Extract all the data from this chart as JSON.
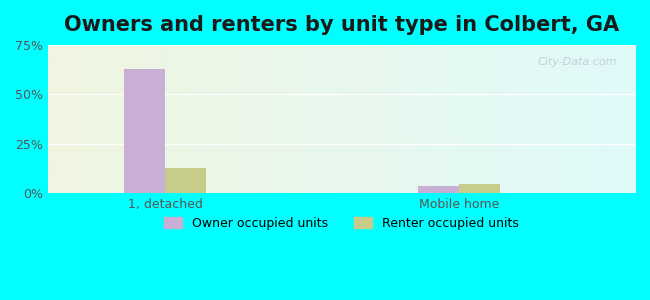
{
  "title": "Owners and renters by unit type in Colbert, GA",
  "categories": [
    "1, detached",
    "Mobile home"
  ],
  "owner_values": [
    63.0,
    3.5
  ],
  "renter_values": [
    13.0,
    4.5
  ],
  "owner_color": "#c9aed6",
  "renter_color": "#c8cc8a",
  "ylim": [
    0,
    75
  ],
  "yticks": [
    0,
    25,
    50,
    75
  ],
  "yticklabels": [
    "0%",
    "25%",
    "50%",
    "75%"
  ],
  "bar_width": 0.35,
  "group_positions": [
    1.0,
    3.5
  ],
  "bg_color_left": "#f0f5e0",
  "bg_color_right": "#e0fafa",
  "outer_bg": "#00ffff",
  "title_fontsize": 15,
  "legend_labels": [
    "Owner occupied units",
    "Renter occupied units"
  ],
  "watermark": "City-Data.com"
}
